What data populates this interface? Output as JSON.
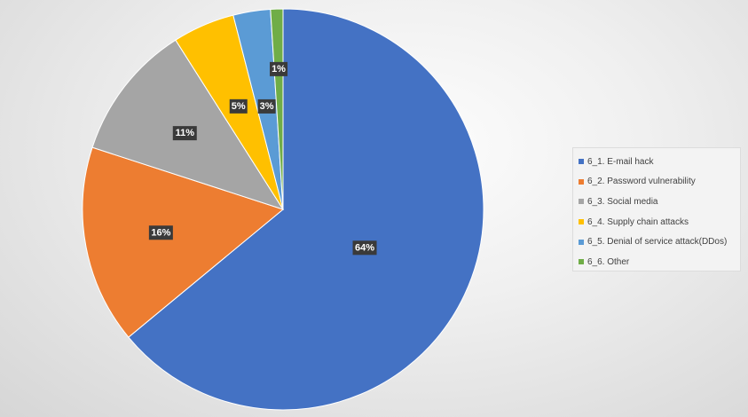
{
  "chart_data": {
    "type": "pie",
    "title": "",
    "start_angle_deg": 0,
    "direction": "clockwise",
    "legend_position": "right",
    "slices": [
      {
        "label": "6_1. E-mail hack",
        "value": 64,
        "display": "64%",
        "color": "#4472C4"
      },
      {
        "label": "6_2. Password vulnerability",
        "value": 16,
        "display": "16%",
        "color": "#ED7D31"
      },
      {
        "label": "6_3. Social media",
        "value": 11,
        "display": "11%",
        "color": "#A5A5A5"
      },
      {
        "label": "6_4. Supply chain attacks",
        "value": 5,
        "display": "5%",
        "color": "#FFC000"
      },
      {
        "label": "6_5. Denial of service attack(DDos)",
        "value": 3,
        "display": "3%",
        "color": "#5B9BD5"
      },
      {
        "label": "6_6. Other",
        "value": 1,
        "display": "1%",
        "color": "#70AD47"
      }
    ]
  },
  "legend": {
    "items": [
      {
        "label": "6_1. E-mail hack",
        "color": "#4472C4"
      },
      {
        "label": "6_2. Password vulnerability",
        "color": "#ED7D31"
      },
      {
        "label": "6_3. Social media",
        "color": "#A5A5A5"
      },
      {
        "label": "6_4. Supply chain attacks",
        "color": "#FFC000"
      },
      {
        "label": "6_5. Denial of service attack(DDos)",
        "color": "#5B9BD5"
      },
      {
        "label": "6_6. Other",
        "color": "#70AD47"
      }
    ]
  }
}
